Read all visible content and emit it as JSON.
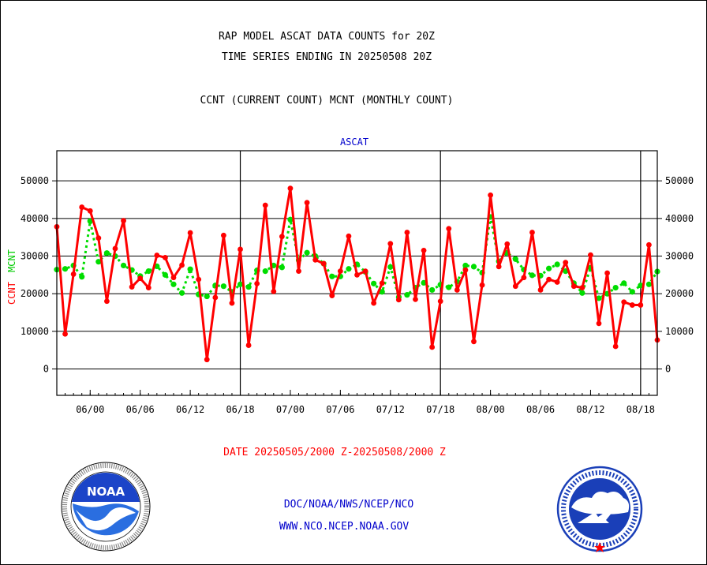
{
  "header": {
    "title_line1": "RAP MODEL ASCAT DATA COUNTS for 20Z",
    "title_line2": "TIME SERIES ENDING IN 20250508 20Z",
    "subtitle": "CCNT (CURRENT COUNT) MCNT (MONTHLY COUNT)"
  },
  "footer": {
    "date_range": "DATE 20250505/2000 Z-20250508/2000 Z",
    "org_path": "DOC/NOAA/NWS/NCEP/NCO",
    "url": "WWW.NCO.NCEP.NOAA.GOV"
  },
  "logos": {
    "noaa_text": "NOAA",
    "nws_ring_text": "NATIONAL WEATHER SERVICE"
  },
  "chart_data": {
    "type": "line",
    "title": "ASCAT",
    "ylabel_left": [
      "CCNT",
      "MCNT"
    ],
    "ylim": [
      -7000,
      58000
    ],
    "yticks": [
      0,
      10000,
      20000,
      30000,
      40000,
      50000
    ],
    "xtick_labels": [
      "06/00",
      "06/06",
      "06/12",
      "06/18",
      "07/00",
      "07/06",
      "07/12",
      "07/18",
      "08/00",
      "08/06",
      "08/12",
      "08/18"
    ],
    "xtick_hours": [
      4,
      10,
      16,
      22,
      28,
      34,
      40,
      46,
      52,
      58,
      64,
      70
    ],
    "day_boundary_hours": [
      22,
      46,
      70
    ],
    "x_hours_range": [
      0,
      72
    ],
    "grid": true,
    "colors": {
      "ccnt": "#ff0000",
      "mcnt": "#00dd00",
      "axis": "#000000",
      "title": "#0000cc"
    },
    "series": [
      {
        "name": "CCNT",
        "style": "solid",
        "values": [
          37800,
          9300,
          25200,
          43000,
          42000,
          34800,
          18000,
          32000,
          39400,
          21800,
          24100,
          21600,
          30200,
          29600,
          24300,
          27600,
          36200,
          23800,
          2500,
          19000,
          35500,
          17500,
          31800,
          6300,
          22700,
          43500,
          20600,
          35200,
          48000,
          26000,
          44200,
          29000,
          28000,
          19500,
          26000,
          35300,
          25000,
          26000,
          17500,
          22800,
          33300,
          18400,
          36300,
          18500,
          31500,
          5800,
          18000,
          37300,
          21000,
          26300,
          7300,
          22300,
          46200,
          27200,
          33200,
          22000,
          24300,
          36300,
          21000,
          23800,
          23100,
          28300,
          22000,
          21600,
          30300,
          12100,
          25500,
          6000,
          17800,
          17000,
          17000,
          33000,
          7700
        ]
      },
      {
        "name": "MCNT",
        "style": "dotted",
        "values": [
          26400,
          26600,
          27500,
          24500,
          39300,
          28500,
          30800,
          30000,
          27500,
          26300,
          24700,
          26000,
          27300,
          25000,
          22500,
          20200,
          26500,
          19800,
          19300,
          22200,
          22000,
          20500,
          22500,
          21800,
          26200,
          26000,
          27500,
          27000,
          39700,
          28900,
          30900,
          30000,
          28000,
          24600,
          24600,
          26600,
          27800,
          25800,
          22700,
          20500,
          27100,
          19100,
          19700,
          21600,
          22900,
          21000,
          22400,
          21700,
          23200,
          27500,
          27200,
          25600,
          40400,
          28600,
          30900,
          29200,
          26400,
          24900,
          24800,
          26700,
          27800,
          26000,
          22800,
          20200,
          26900,
          18800,
          20000,
          21600,
          22800,
          20500,
          22200,
          22500,
          25900
        ]
      }
    ]
  }
}
